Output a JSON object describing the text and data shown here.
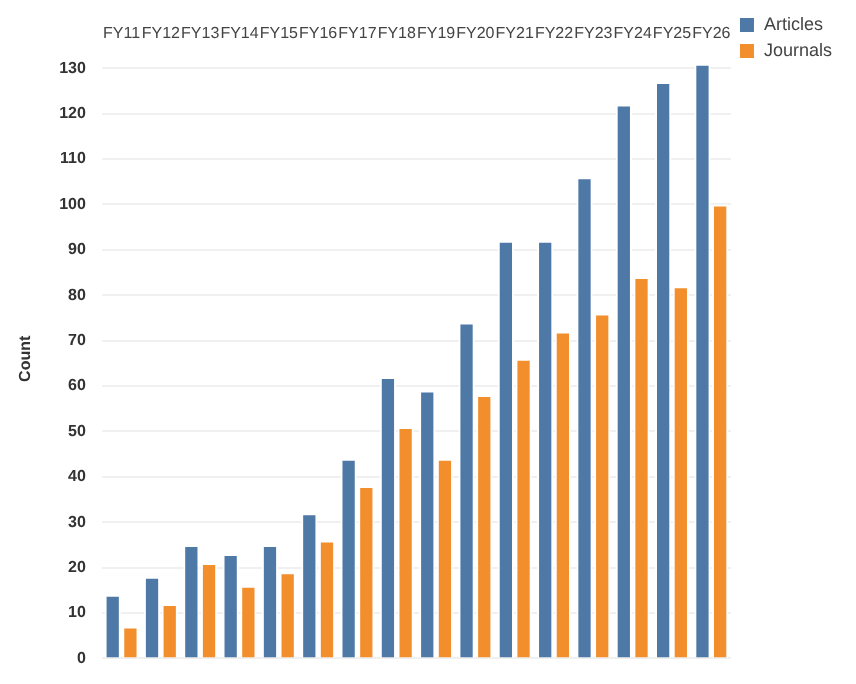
{
  "chart_data": {
    "type": "bar",
    "ylabel": "Count",
    "categories": [
      "FY11",
      "FY12",
      "FY13",
      "FY14",
      "FY15",
      "FY16",
      "FY17",
      "FY18",
      "FY19",
      "FY20",
      "FY21",
      "FY22",
      "FY23",
      "FY24",
      "FY25",
      "FY26"
    ],
    "series": [
      {
        "name": "Articles",
        "color": "#4e79a7",
        "values": [
          14,
          18,
          25,
          23,
          25,
          32,
          44,
          62,
          59,
          74,
          92,
          92,
          106,
          122,
          127,
          131
        ]
      },
      {
        "name": "Journals",
        "color": "#f28e2b",
        "values": [
          7,
          12,
          21,
          16,
          19,
          26,
          38,
          51,
          44,
          58,
          66,
          72,
          76,
          84,
          82,
          100
        ]
      }
    ],
    "ylim": [
      0,
      132
    ],
    "yticks": [
      0,
      10,
      20,
      30,
      40,
      50,
      60,
      70,
      80,
      90,
      100,
      110,
      120,
      130
    ],
    "grid": "y",
    "legend": "top right"
  }
}
